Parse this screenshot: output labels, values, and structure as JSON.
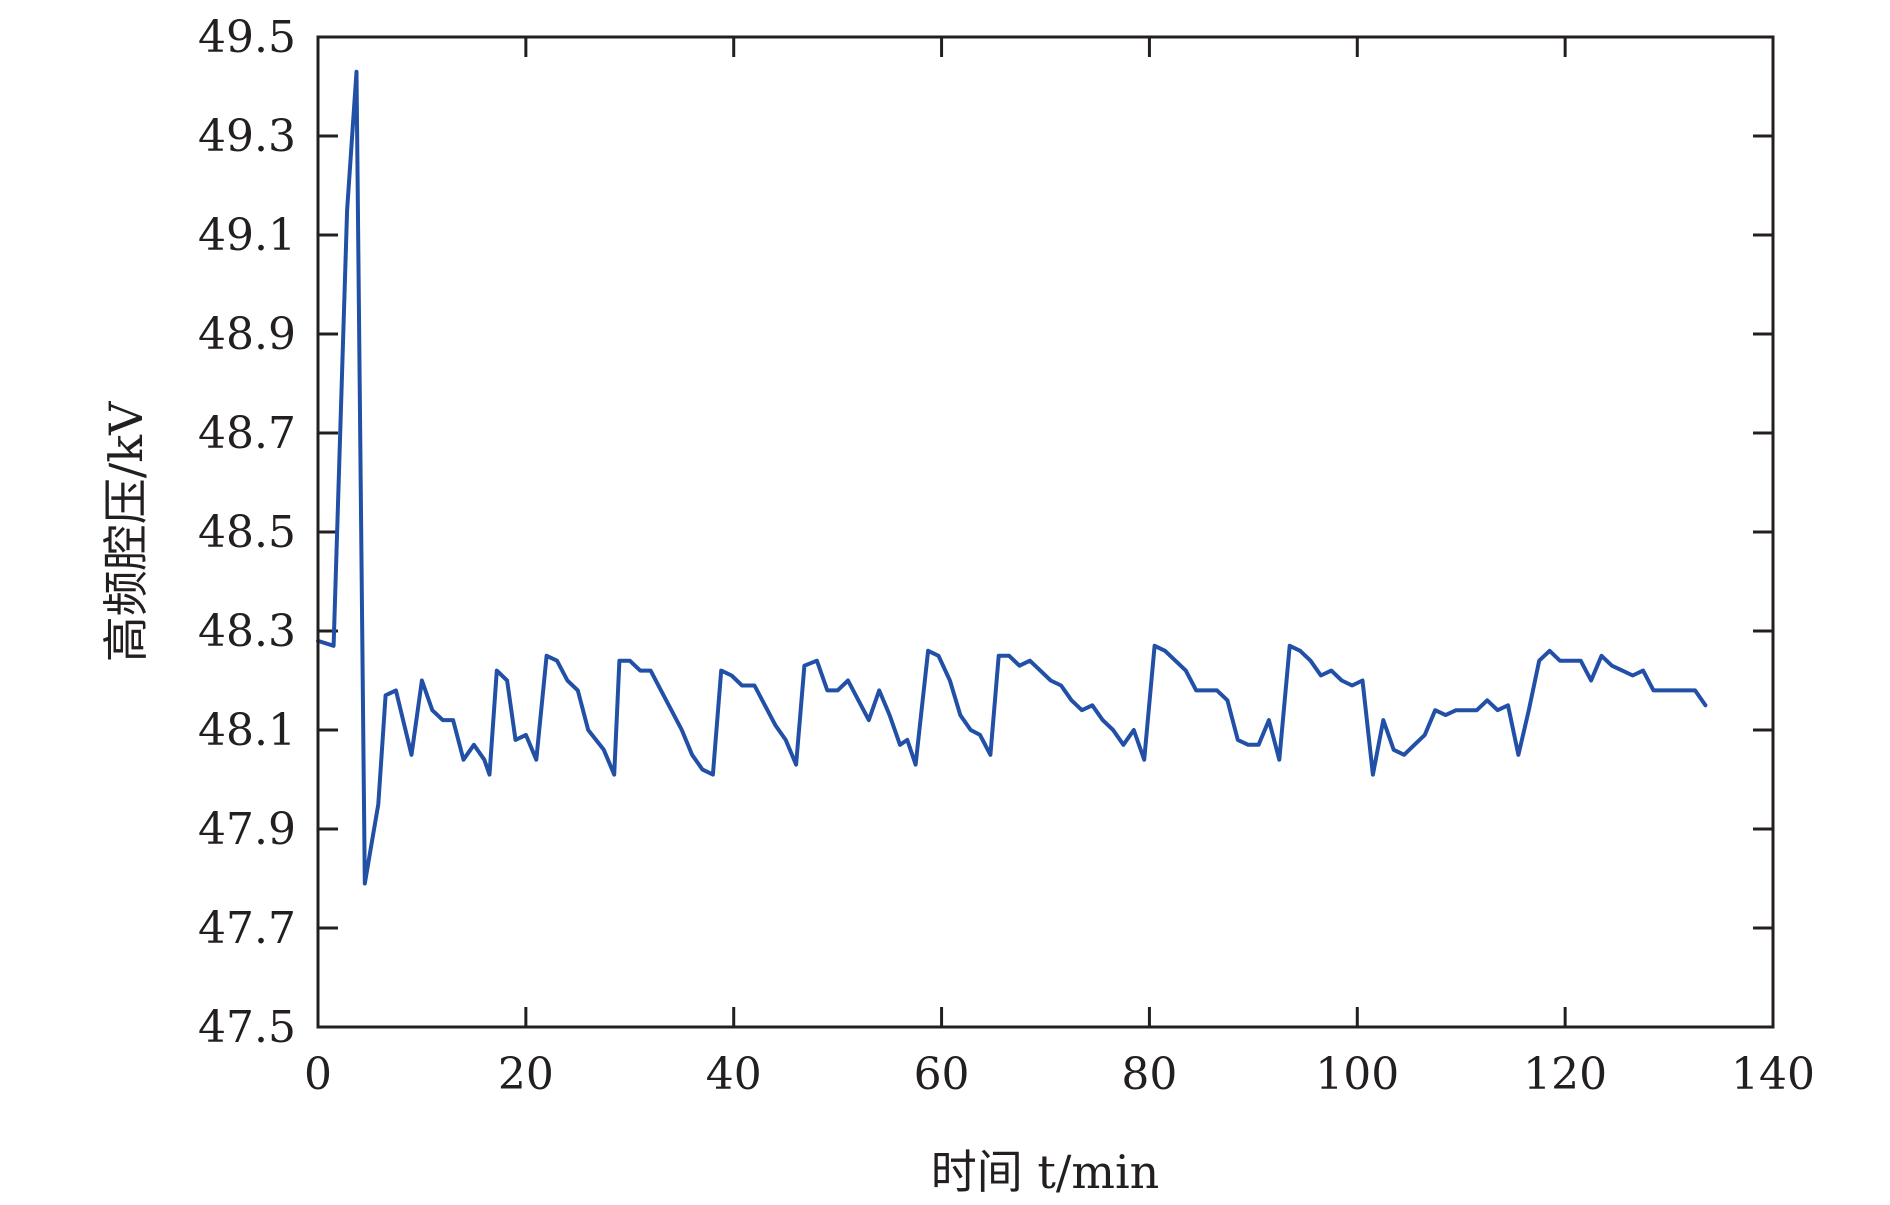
{
  "chart_data": {
    "type": "line",
    "title": "",
    "xlabel": "时间 t/min",
    "ylabel": "高频腔压/kV",
    "xlim": [
      0,
      140
    ],
    "ylim": [
      47.5,
      49.5
    ],
    "xticks": [
      0,
      20,
      40,
      60,
      80,
      100,
      120,
      140
    ],
    "yticks": [
      47.5,
      47.7,
      47.9,
      48.1,
      48.3,
      48.5,
      48.7,
      48.9,
      49.1,
      49.3,
      49.5
    ],
    "xtick_labels": [
      "0",
      "20",
      "40",
      "60",
      "80",
      "100",
      "120",
      "140"
    ],
    "ytick_labels": [
      "47.5",
      "47.7",
      "47.9",
      "48.1",
      "48.3",
      "48.5",
      "48.7",
      "48.9",
      "49.1",
      "49.3",
      "49.5"
    ],
    "grid": false,
    "series_color": "#2150a6",
    "series": [
      {
        "x": [
          0,
          1.5,
          2.8,
          3.7,
          4.5,
          5.8,
          6.5,
          7.5,
          9,
          10,
          11,
          12,
          13,
          14,
          15,
          16,
          16.5,
          17.2,
          18.2,
          19,
          20,
          21,
          22,
          23,
          24,
          25,
          26,
          27.5,
          28.5,
          29,
          30,
          31,
          32,
          33,
          34,
          35,
          36,
          37,
          38,
          38.8,
          39.8,
          40.8,
          42,
          43,
          44,
          45,
          46,
          46.8,
          48,
          49,
          50,
          51,
          52,
          53,
          54,
          55,
          56,
          56.7,
          57.5,
          58.7,
          59.7,
          60.8,
          61.8,
          62.8,
          63.7,
          64.7,
          65.5,
          66.5,
          67.5,
          68.5,
          69.5,
          70.5,
          71.5,
          72.5,
          73.5,
          74.5,
          75.5,
          76.5,
          77.5,
          78.5,
          79.5,
          80.5,
          81.5,
          82.5,
          83.5,
          84.5,
          85.5,
          86.5,
          87.5,
          88.5,
          89.5,
          90.5,
          91.5,
          92.5,
          93.5,
          94.5,
          95.5,
          96.5,
          97.5,
          98.5,
          99.5,
          100.5,
          101.5,
          102.5,
          103.5,
          104.5,
          105.5,
          106.5,
          107.5,
          108.5,
          109.5,
          110.5,
          111.5,
          112.5,
          113.5,
          114.5,
          115.5,
          116.5,
          117.5,
          118.5,
          119.5,
          120.5,
          121.5,
          122.5,
          123.5,
          124.5,
          125.5,
          126.5,
          127.5,
          128.5,
          129.5,
          130.5,
          131.5,
          132.5,
          133.5
        ],
        "values": [
          48.28,
          48.27,
          49.15,
          49.43,
          47.79,
          47.95,
          48.17,
          48.18,
          48.05,
          48.2,
          48.14,
          48.12,
          48.12,
          48.04,
          48.07,
          48.04,
          48.01,
          48.22,
          48.2,
          48.08,
          48.09,
          48.04,
          48.25,
          48.24,
          48.2,
          48.18,
          48.1,
          48.06,
          48.01,
          48.24,
          48.24,
          48.22,
          48.22,
          48.18,
          48.14,
          48.1,
          48.05,
          48.02,
          48.01,
          48.22,
          48.21,
          48.19,
          48.19,
          48.15,
          48.11,
          48.08,
          48.03,
          48.23,
          48.24,
          48.18,
          48.18,
          48.2,
          48.16,
          48.12,
          48.18,
          48.13,
          48.07,
          48.08,
          48.03,
          48.26,
          48.25,
          48.2,
          48.13,
          48.1,
          48.09,
          48.05,
          48.25,
          48.25,
          48.23,
          48.24,
          48.22,
          48.2,
          48.19,
          48.16,
          48.14,
          48.15,
          48.12,
          48.1,
          48.07,
          48.1,
          48.04,
          48.27,
          48.26,
          48.24,
          48.22,
          48.18,
          48.18,
          48.18,
          48.16,
          48.08,
          48.07,
          48.07,
          48.12,
          48.04,
          48.27,
          48.26,
          48.24,
          48.21,
          48.22,
          48.2,
          48.19,
          48.2,
          48.01,
          48.12,
          48.06,
          48.05,
          48.07,
          48.09,
          48.14,
          48.13,
          48.14,
          48.14,
          48.14,
          48.16,
          48.14,
          48.15,
          48.05,
          48.14,
          48.24,
          48.26,
          48.24,
          48.24,
          48.24,
          48.2,
          48.25,
          48.23,
          48.22,
          48.21,
          48.22,
          48.18,
          48.18,
          48.18,
          48.18,
          48.18,
          48.15
        ]
      }
    ]
  }
}
